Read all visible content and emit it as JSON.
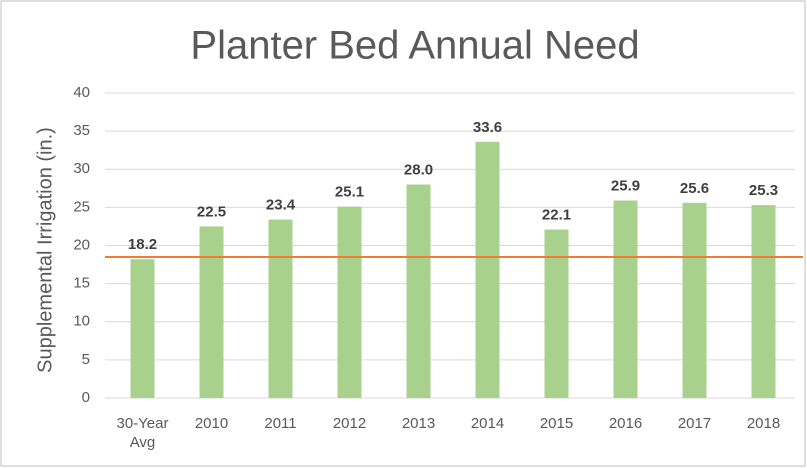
{
  "chart_data": {
    "type": "bar",
    "title": "Planter Bed Annual Need",
    "y_label": "Supplemental Irrigation (in.)",
    "categories": [
      "30-Year Avg",
      "2010",
      "2011",
      "2012",
      "2013",
      "2014",
      "2015",
      "2016",
      "2017",
      "2018"
    ],
    "values": [
      18.2,
      22.5,
      23.4,
      25.1,
      28.0,
      33.6,
      22.1,
      25.9,
      25.6,
      25.3
    ],
    "value_labels": [
      "18.2",
      "22.5",
      "23.4",
      "25.1",
      "28.0",
      "33.6",
      "22.1",
      "25.9",
      "25.6",
      "25.3"
    ],
    "color": "#a9d18e",
    "hline": {
      "value": 18.5,
      "color": "#ed7d31"
    },
    "ylim": [
      0,
      40
    ],
    "yticks": [
      0,
      5,
      10,
      15,
      20,
      25,
      30,
      35,
      40
    ],
    "grid": true
  }
}
